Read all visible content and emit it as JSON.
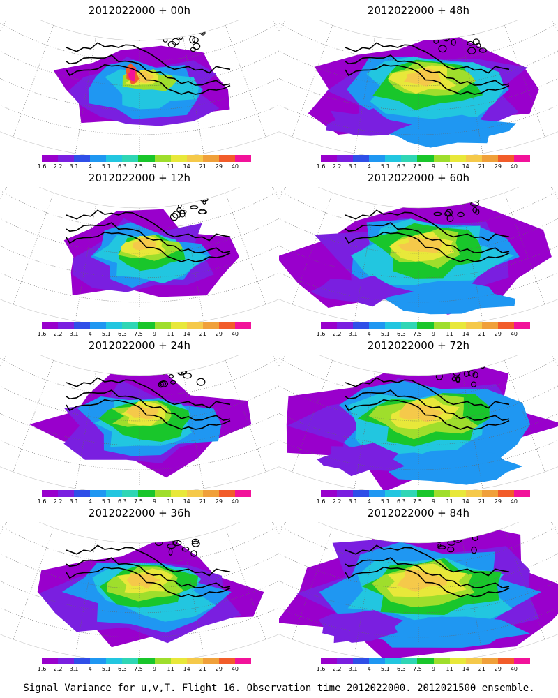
{
  "panels": [
    {
      "title": "2012022000 + 00h",
      "lead_hours": 0
    },
    {
      "title": "2012022000 + 48h",
      "lead_hours": 48
    },
    {
      "title": "2012022000 + 12h",
      "lead_hours": 12
    },
    {
      "title": "2012022000 + 60h",
      "lead_hours": 60
    },
    {
      "title": "2012022000 + 24h",
      "lead_hours": 24
    },
    {
      "title": "2012022000 + 72h",
      "lead_hours": 72
    },
    {
      "title": "2012022000 + 36h",
      "lead_hours": 36
    },
    {
      "title": "2012022000 + 84h",
      "lead_hours": 84
    }
  ],
  "colorbar": {
    "labels": [
      "1.6",
      "2.2",
      "3.1",
      "4",
      "5.1",
      "6.3",
      "7.5",
      "9",
      "11",
      "14",
      "21",
      "29",
      "40"
    ],
    "colors": [
      "#9900cc",
      "#7a1fe0",
      "#2f4fe8",
      "#1f97f2",
      "#22c6e0",
      "#2fd6b5",
      "#19c62b",
      "#9fde2c",
      "#e8e83a",
      "#f5c94a",
      "#f0a03a",
      "#f25c2a",
      "#f2129a"
    ]
  },
  "caption": "Signal Variance for u,v,T. Flight 16. Observation time 2012022000. 2012021500 ensemble."
}
